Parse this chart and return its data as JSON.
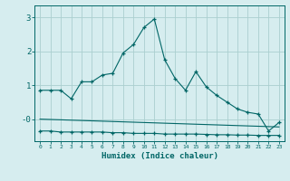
{
  "x": [
    0,
    1,
    2,
    3,
    4,
    5,
    6,
    7,
    8,
    9,
    10,
    11,
    12,
    13,
    14,
    15,
    16,
    17,
    18,
    19,
    20,
    21,
    22,
    23
  ],
  "line1_y": [
    0.85,
    0.85,
    0.85,
    0.6,
    1.1,
    1.1,
    1.3,
    1.35,
    1.95,
    2.2,
    2.7,
    2.95,
    1.75,
    1.2,
    0.85,
    1.4,
    0.95,
    0.7,
    0.5,
    0.3,
    0.2,
    0.15,
    -0.35,
    -0.1
  ],
  "line2_y": [
    -0.35,
    -0.35,
    -0.38,
    -0.38,
    -0.38,
    -0.38,
    -0.38,
    -0.4,
    -0.4,
    -0.42,
    -0.42,
    -0.42,
    -0.44,
    -0.44,
    -0.44,
    -0.44,
    -0.45,
    -0.46,
    -0.46,
    -0.47,
    -0.47,
    -0.48,
    -0.48,
    -0.48
  ],
  "line3_y": [
    0.0,
    -0.01,
    -0.02,
    -0.03,
    -0.04,
    -0.05,
    -0.06,
    -0.07,
    -0.08,
    -0.09,
    -0.1,
    -0.11,
    -0.12,
    -0.13,
    -0.14,
    -0.15,
    -0.16,
    -0.17,
    -0.18,
    -0.19,
    -0.2,
    -0.21,
    -0.22,
    -0.23
  ],
  "bg_color": "#d6edef",
  "line_color": "#006666",
  "grid_color": "#aacfcf",
  "xlabel": "Humidex (Indice chaleur)",
  "ylim_min": -0.65,
  "ylim_max": 3.35,
  "xlim_min": -0.5,
  "xlim_max": 23.5,
  "ytick_vals": [
    0,
    1,
    2,
    3
  ],
  "ytick_labels": [
    "-0",
    "1",
    "2",
    "3"
  ]
}
